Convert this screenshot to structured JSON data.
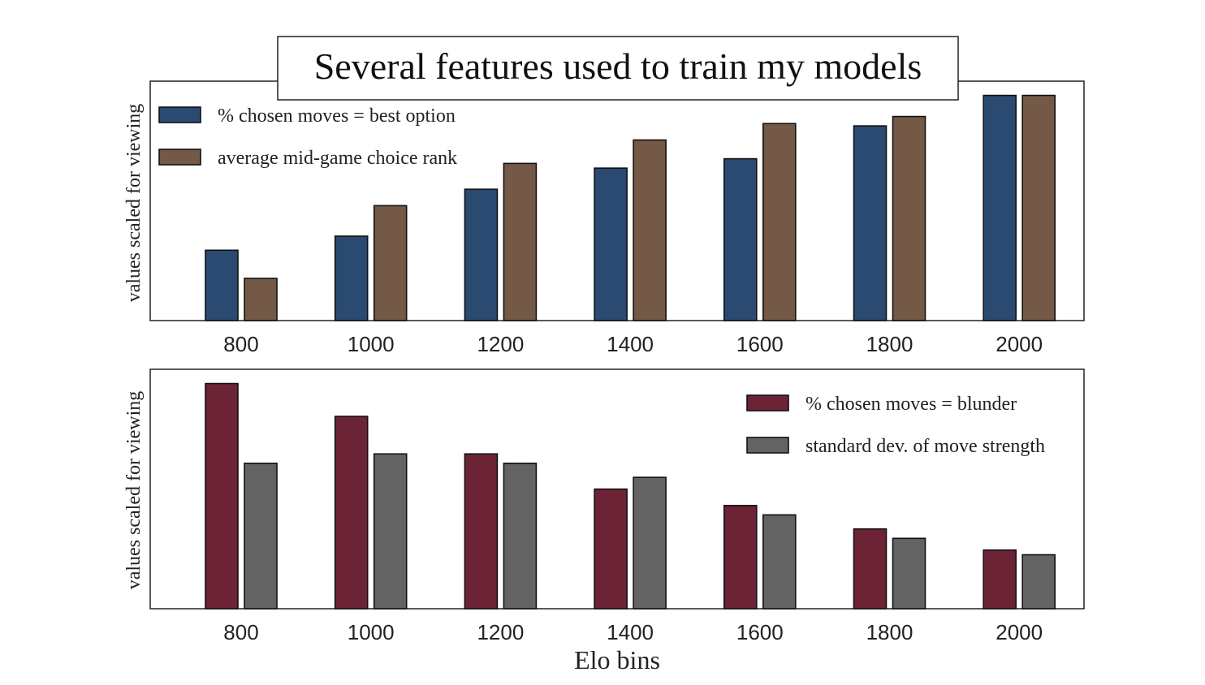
{
  "title": "Several features used to train my models",
  "xlabel": "Elo bins",
  "colors": {
    "best_option": "#2b4a71",
    "mid_game_rank": "#735946",
    "blunder": "#6d2336",
    "std_dev": "#636363"
  },
  "chart_data": [
    {
      "type": "bar",
      "categories": [
        "800",
        "1000",
        "1200",
        "1400",
        "1600",
        "1800",
        "2000"
      ],
      "ylabel": "values scaled for viewing",
      "xlabel": "",
      "ylim": [
        0,
        1
      ],
      "legend_position": "top-left",
      "series": [
        {
          "name": "% chosen moves = best option",
          "color": "#2b4a71",
          "values": [
            0.3,
            0.36,
            0.56,
            0.65,
            0.69,
            0.83,
            0.96
          ]
        },
        {
          "name": "average mid-game choice rank",
          "color": "#735946",
          "values": [
            0.18,
            0.49,
            0.67,
            0.77,
            0.84,
            0.87,
            0.96
          ]
        }
      ]
    },
    {
      "type": "bar",
      "categories": [
        "800",
        "1000",
        "1200",
        "1400",
        "1600",
        "1800",
        "2000"
      ],
      "ylabel": "values scaled for viewing",
      "xlabel": "Elo bins",
      "ylim": [
        0,
        1
      ],
      "legend_position": "top-right",
      "series": [
        {
          "name": "% chosen moves = blunder",
          "color": "#6d2336",
          "values": [
            0.96,
            0.82,
            0.66,
            0.51,
            0.44,
            0.34,
            0.25
          ]
        },
        {
          "name": "standard dev. of move strength",
          "color": "#636363",
          "values": [
            0.62,
            0.66,
            0.62,
            0.56,
            0.4,
            0.3,
            0.23
          ]
        }
      ]
    }
  ]
}
